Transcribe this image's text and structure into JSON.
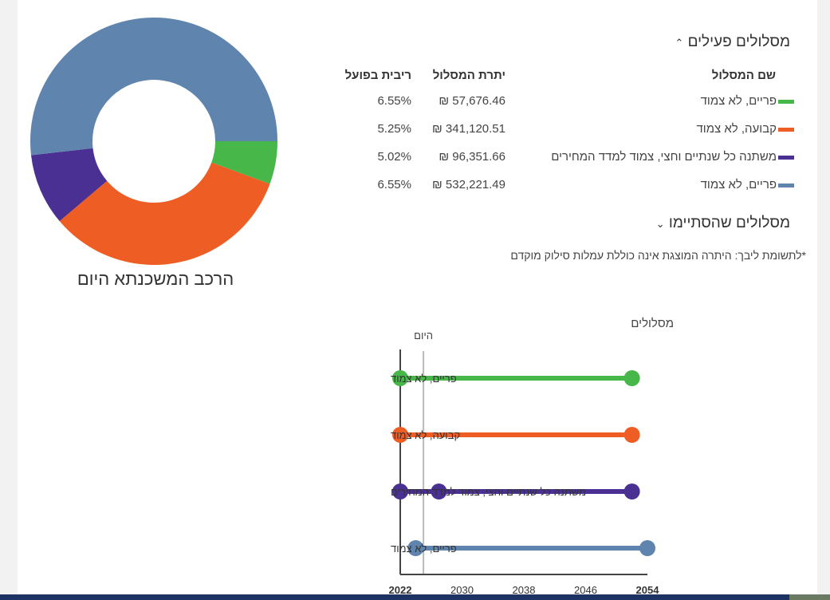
{
  "donut": {
    "title": "הרכב המשכנתא היום"
  },
  "active": {
    "title": "מסלולים פעילים",
    "toggle_icon": "chevron-up-icon",
    "headers": {
      "name": "שם המסלול",
      "balance": "יתרת המסלול",
      "rate": "ריבית בפועל"
    },
    "rows": [
      {
        "name": "פריים, לא צמוד",
        "balance": "57,676.46 ₪",
        "rate": "6.55%",
        "color": "#48b749"
      },
      {
        "name": "קבועה, לא צמוד",
        "balance": "341,120.51 ₪",
        "rate": "5.25%",
        "color": "#ee5e24"
      },
      {
        "name": "משתנה כל שנתיים וחצי, צמוד למדד המחירים",
        "balance": "96,351.66 ₪",
        "rate": "5.02%",
        "color": "#4a3093"
      },
      {
        "name": "פריים, לא צמוד",
        "balance": "532,221.49 ₪",
        "rate": "6.55%",
        "color": "#5f84ad"
      }
    ]
  },
  "finished": {
    "title": "מסלולים שהסתיימו",
    "toggle_icon": "chevron-down-icon"
  },
  "note": "*לתשומת ליבך: היתרה המוצגת אינה כוללת עמלות סילוק מוקדם",
  "chart_data": [
    {
      "type": "pie",
      "title": "הרכב המשכנתא היום",
      "donut": true,
      "categories": [
        "פריים, לא צמוד",
        "קבועה, לא צמוד",
        "משתנה כל שנתיים וחצי, צמוד למדד המחירים",
        "פריים, לא צמוד"
      ],
      "values": [
        57676.46,
        341120.51,
        96351.66,
        532221.49
      ],
      "colors": [
        "#48b749",
        "#ee5e24",
        "#4a3093",
        "#5f84ad"
      ]
    },
    {
      "type": "line",
      "title": "מסלולים",
      "today_label": "היום",
      "today": 2025,
      "xlim": [
        2022,
        2054
      ],
      "xticks": [
        "2022",
        "2030",
        "2038",
        "2046",
        "2054"
      ],
      "series": [
        {
          "name": "פריים, לא צמוד",
          "points": [
            2022,
            2052
          ],
          "color": "#48b749"
        },
        {
          "name": "קבועה, לא צמוד",
          "points": [
            2022,
            2052
          ],
          "color": "#ee5e24"
        },
        {
          "name": "משתנה כל שנתיים וחצי, צמוד למדד המחירים",
          "points": [
            2022,
            2027,
            2052
          ],
          "color": "#4a3093"
        },
        {
          "name": "פריים, לא צמוד",
          "points": [
            2024,
            2054
          ],
          "color": "#5f84ad"
        }
      ]
    }
  ]
}
